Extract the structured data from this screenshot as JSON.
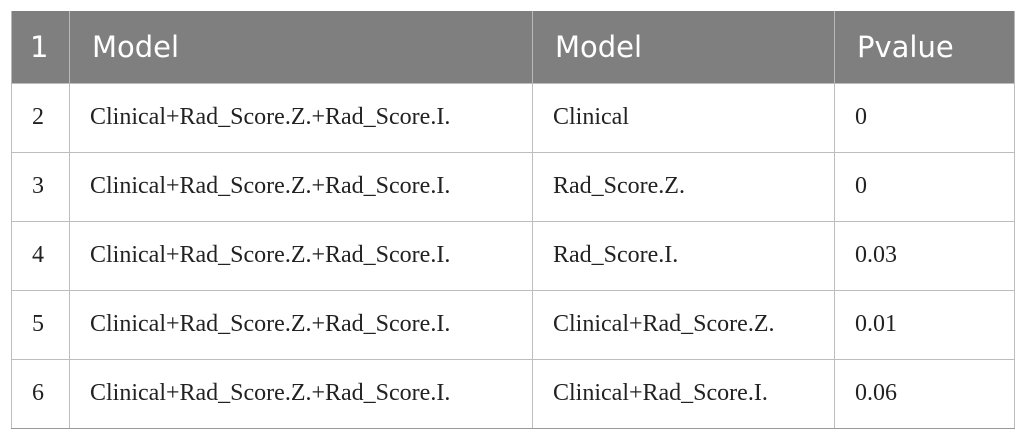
{
  "table": {
    "headers": [
      "1",
      "Model",
      "Model",
      "Pvalue"
    ],
    "rows": [
      {
        "index": "2",
        "model_a": "Clinical+Rad_Score.Z.+Rad_Score.I.",
        "model_b": "Clinical",
        "pvalue": "0"
      },
      {
        "index": "3",
        "model_a": "Clinical+Rad_Score.Z.+Rad_Score.I.",
        "model_b": "Rad_Score.Z.",
        "pvalue": "0"
      },
      {
        "index": "4",
        "model_a": "Clinical+Rad_Score.Z.+Rad_Score.I.",
        "model_b": "Rad_Score.I.",
        "pvalue": "0.03"
      },
      {
        "index": "5",
        "model_a": "Clinical+Rad_Score.Z.+Rad_Score.I.",
        "model_b": "Clinical+Rad_Score.Z.",
        "pvalue": "0.01"
      },
      {
        "index": "6",
        "model_a": "Clinical+Rad_Score.Z.+Rad_Score.I.",
        "model_b": "Clinical+Rad_Score.I.",
        "pvalue": "0.06"
      }
    ]
  },
  "colors": {
    "header_bg": "#7f7f7f",
    "header_text": "#ffffff",
    "grid": "#bdbdbd"
  }
}
